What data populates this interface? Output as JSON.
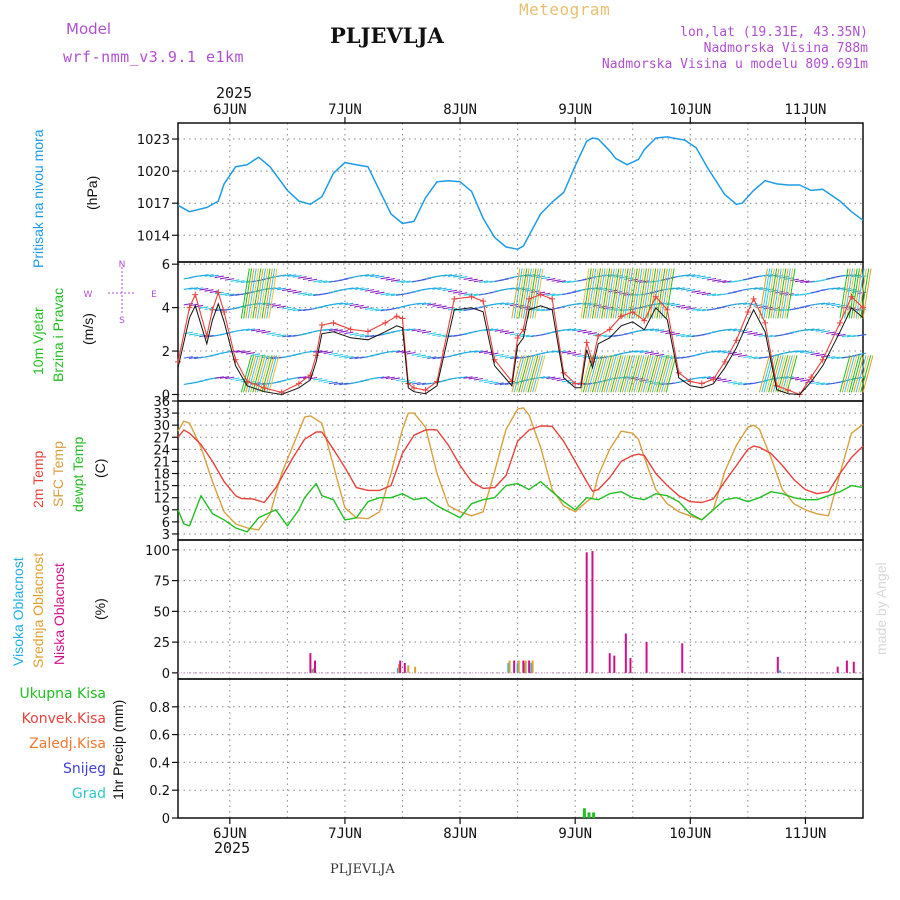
{
  "header": {
    "model_label": "Model",
    "model_name": "wrf-nmm_v3.9.1 e1km",
    "station": "PLJEVLJA",
    "product": "Meteogram",
    "coords": "lon,lat (19.31E, 43.35N)",
    "elevation": "Nadmorska Visina 788m",
    "model_elevation": "Nadmorska Visina u modelu 809.691m",
    "year": "2025",
    "footer_station": "PLJEVLJA",
    "credit": "made by Angel"
  },
  "colors": {
    "pressure": "#1e9be8",
    "temp2m": "#e8423c",
    "sfc_temp": "#d8a040",
    "dewpoint": "#22c022",
    "high_cloud": "#1eb0e8",
    "mid_cloud": "#e0a030",
    "low_cloud": "#d0108a",
    "total_precip": "#22c022",
    "conv_precip": "#e8423c",
    "frozen_precip": "#f07830",
    "snow": "#4040d8",
    "graupel": "#30c8c8",
    "purple_text": "#b050d0",
    "meteogram_text": "#e8c070"
  },
  "chart_data": [
    {
      "type": "line",
      "panel": "pressure",
      "title": "",
      "ylabel": "(hPa)",
      "side_label": "Pritisak na nivou mora",
      "xlabels": [
        "6JUN",
        "7JUN",
        "8JUN",
        "9JUN",
        "10JUN",
        "11JUN"
      ],
      "x_range_days": [
        5.55,
        11.5
      ],
      "ylim": [
        1011.5,
        1024.5
      ],
      "yticks": [
        1014,
        1017,
        1020,
        1023
      ],
      "series": [
        {
          "x": [
            5.55,
            5.65,
            5.8,
            5.9,
            5.95,
            6.05,
            6.15,
            6.25,
            6.35,
            6.5,
            6.6,
            6.7,
            6.8,
            6.9,
            7.0,
            7.1,
            7.2,
            7.3,
            7.4,
            7.5,
            7.6,
            7.7,
            7.8,
            7.9,
            8.0,
            8.1,
            8.2,
            8.3,
            8.4,
            8.5,
            8.55,
            8.6,
            8.7,
            8.8,
            8.9,
            9.0,
            9.1,
            9.15,
            9.2,
            9.3,
            9.35,
            9.45,
            9.55,
            9.6,
            9.7,
            9.8,
            9.85,
            9.95,
            10.05,
            10.15,
            10.3,
            10.4,
            10.45,
            10.55,
            10.65,
            10.75,
            10.85,
            10.95,
            11.05,
            11.15,
            11.3,
            11.4,
            11.5
          ],
          "values": [
            1016.8,
            1016.2,
            1016.6,
            1017.2,
            1018.8,
            1020.4,
            1020.6,
            1021.3,
            1020.4,
            1018.2,
            1017.2,
            1016.9,
            1017.6,
            1019.8,
            1020.8,
            1020.6,
            1020.4,
            1018.2,
            1016.0,
            1015.1,
            1015.3,
            1017.5,
            1019.0,
            1019.1,
            1019.0,
            1018.1,
            1015.6,
            1013.8,
            1012.9,
            1012.7,
            1013.0,
            1014.0,
            1016.0,
            1017.1,
            1018.0,
            1020.5,
            1022.8,
            1023.1,
            1023.0,
            1021.9,
            1021.2,
            1020.6,
            1021.1,
            1022.0,
            1023.1,
            1023.2,
            1023.1,
            1022.9,
            1022.2,
            1020.3,
            1017.8,
            1016.9,
            1017.0,
            1018.2,
            1019.1,
            1018.8,
            1018.7,
            1018.7,
            1018.2,
            1018.3,
            1017.2,
            1016.2,
            1015.4
          ]
        }
      ]
    },
    {
      "type": "line",
      "panel": "wind",
      "title": "",
      "ylabel": "(m/s)",
      "side_label_1": "10m Vjetar",
      "side_label_2": "Brzina i Pravac",
      "compass": [
        "N",
        "E",
        "W",
        "S"
      ],
      "ylim": [
        -0.3,
        6.1
      ],
      "yticks": [
        0,
        2,
        4,
        6
      ],
      "series": [
        {
          "name": "",
          "x": [
            5.55,
            5.65,
            5.7,
            5.8,
            5.85,
            5.9,
            5.95,
            6.05,
            6.15,
            6.3,
            6.45,
            6.6,
            6.7,
            6.75,
            6.8,
            6.9,
            7.05,
            7.2,
            7.35,
            7.45,
            7.5,
            7.55,
            7.6,
            7.7,
            7.8,
            7.95,
            8.1,
            8.2,
            8.3,
            8.45,
            8.5,
            8.55,
            8.6,
            8.7,
            8.8,
            8.9,
            9.0,
            9.05,
            9.1,
            9.15,
            9.2,
            9.3,
            9.4,
            9.5,
            9.6,
            9.7,
            9.8,
            9.9,
            10.0,
            10.1,
            10.2,
            10.3,
            10.4,
            10.5,
            10.55,
            10.65,
            10.75,
            10.85,
            10.95,
            11.05,
            11.15,
            11.3,
            11.4,
            11.5
          ],
          "values": [
            1.5,
            4.0,
            4.6,
            2.7,
            3.9,
            4.7,
            3.8,
            1.6,
            0.6,
            0.3,
            0.1,
            0.5,
            0.9,
            1.8,
            3.2,
            3.3,
            3.0,
            2.9,
            3.3,
            3.6,
            3.5,
            0.5,
            0.3,
            0.2,
            0.6,
            4.4,
            4.5,
            4.3,
            1.6,
            0.6,
            2.6,
            3.0,
            4.4,
            4.6,
            4.4,
            1.0,
            0.5,
            0.5,
            2.4,
            1.5,
            2.7,
            3.0,
            3.6,
            3.8,
            3.4,
            4.5,
            3.9,
            1.0,
            0.6,
            0.5,
            0.7,
            1.5,
            2.5,
            3.8,
            4.4,
            3.3,
            0.4,
            0.2,
            0.0,
            0.8,
            1.6,
            3.3,
            4.5,
            4.0
          ]
        }
      ]
    },
    {
      "type": "line",
      "panel": "temperature",
      "title": "",
      "ylabel": "(C)",
      "side_label_1": "2m Temp",
      "side_label_2": "SFC Temp",
      "side_label_3": "dewpt Temp",
      "ylim": [
        1.5,
        36
      ],
      "yticks": [
        3,
        6,
        9,
        12,
        15,
        18,
        21,
        24,
        27,
        30,
        33,
        36
      ],
      "series": [
        {
          "name": "2m Temp",
          "x": [
            5.55,
            5.6,
            5.65,
            5.75,
            5.85,
            5.95,
            6.05,
            6.1,
            6.2,
            6.3,
            6.4,
            6.55,
            6.65,
            6.75,
            6.8,
            6.9,
            7.0,
            7.1,
            7.2,
            7.3,
            7.4,
            7.5,
            7.6,
            7.7,
            7.75,
            7.8,
            7.9,
            8.0,
            8.1,
            8.2,
            8.3,
            8.4,
            8.5,
            8.6,
            8.7,
            8.75,
            8.8,
            8.9,
            9.0,
            9.1,
            9.15,
            9.2,
            9.3,
            9.4,
            9.5,
            9.55,
            9.6,
            9.7,
            9.8,
            9.9,
            10.0,
            10.1,
            10.2,
            10.3,
            10.4,
            10.5,
            10.55,
            10.6,
            10.7,
            10.8,
            10.9,
            11.0,
            11.1,
            11.2,
            11.3,
            11.4,
            11.5
          ],
          "values": [
            27.0,
            28.8,
            28.0,
            25.2,
            21.0,
            16.0,
            12.5,
            11.8,
            11.7,
            10.8,
            14.5,
            22.0,
            26.5,
            28.3,
            28.3,
            24.0,
            19.5,
            14.5,
            13.8,
            13.8,
            15.0,
            23.0,
            27.5,
            28.8,
            28.9,
            28.8,
            25.0,
            20.0,
            16.0,
            14.3,
            14.5,
            17.5,
            26.0,
            28.8,
            29.8,
            29.8,
            29.7,
            26.0,
            21.0,
            16.0,
            13.6,
            14.0,
            17.0,
            21.0,
            22.5,
            22.8,
            22.5,
            18.0,
            15.0,
            12.5,
            11.0,
            10.8,
            11.7,
            16.0,
            20.0,
            24.0,
            24.8,
            24.5,
            23.0,
            20.0,
            16.5,
            14.0,
            13.0,
            13.5,
            18.0,
            22.0,
            24.8
          ]
        },
        {
          "name": "SFC Temp",
          "x": [
            5.55,
            5.6,
            5.65,
            5.75,
            5.85,
            5.95,
            6.05,
            6.15,
            6.25,
            6.35,
            6.45,
            6.6,
            6.65,
            6.7,
            6.8,
            6.9,
            7.0,
            7.1,
            7.2,
            7.3,
            7.4,
            7.5,
            7.55,
            7.6,
            7.7,
            7.8,
            7.9,
            8.0,
            8.1,
            8.2,
            8.3,
            8.4,
            8.5,
            8.55,
            8.6,
            8.7,
            8.8,
            8.9,
            9.0,
            9.1,
            9.15,
            9.2,
            9.3,
            9.4,
            9.5,
            9.55,
            9.6,
            9.7,
            9.8,
            9.9,
            10.0,
            10.1,
            10.2,
            10.3,
            10.4,
            10.5,
            10.55,
            10.6,
            10.7,
            10.8,
            10.9,
            11.0,
            11.1,
            11.2,
            11.3,
            11.4,
            11.5
          ],
          "values": [
            28.5,
            31.0,
            30.5,
            24.5,
            16.0,
            8.5,
            5.5,
            4.5,
            4.0,
            8.0,
            18.0,
            28.5,
            32.0,
            32.3,
            30.5,
            20.0,
            9.5,
            7.0,
            6.8,
            8.5,
            18.0,
            29.0,
            33.0,
            33.0,
            29.5,
            18.0,
            10.0,
            8.5,
            7.5,
            8.5,
            18.5,
            29.0,
            34.0,
            34.3,
            32.5,
            24.5,
            14.0,
            10.0,
            8.5,
            11.0,
            12.0,
            17.5,
            24.0,
            28.5,
            28.0,
            26.5,
            22.0,
            14.0,
            10.5,
            8.5,
            7.5,
            6.5,
            9.0,
            18.5,
            25.0,
            29.5,
            30.0,
            29.0,
            22.0,
            14.0,
            10.5,
            9.0,
            8.0,
            7.5,
            18.0,
            28.0,
            30.2
          ]
        },
        {
          "name": "dewpt Temp",
          "x": [
            5.55,
            5.6,
            5.65,
            5.75,
            5.85,
            5.95,
            6.05,
            6.15,
            6.25,
            6.4,
            6.5,
            6.6,
            6.65,
            6.75,
            6.8,
            6.9,
            7.0,
            7.1,
            7.2,
            7.3,
            7.4,
            7.5,
            7.6,
            7.7,
            7.8,
            7.9,
            8.0,
            8.1,
            8.2,
            8.3,
            8.4,
            8.5,
            8.6,
            8.7,
            8.8,
            8.9,
            9.0,
            9.1,
            9.2,
            9.3,
            9.4,
            9.5,
            9.6,
            9.7,
            9.8,
            9.9,
            10.0,
            10.1,
            10.2,
            10.3,
            10.4,
            10.5,
            10.6,
            10.7,
            10.8,
            10.9,
            11.0,
            11.1,
            11.2,
            11.3,
            11.4,
            11.5
          ],
          "values": [
            9.0,
            5.5,
            5.0,
            12.5,
            8.0,
            6.5,
            4.5,
            3.5,
            7.0,
            9.0,
            5.0,
            9.0,
            12.0,
            15.5,
            12.5,
            11.5,
            6.5,
            7.0,
            11.0,
            12.0,
            12.0,
            13.0,
            11.5,
            12.0,
            10.0,
            8.5,
            7.0,
            10.5,
            11.5,
            12.0,
            15.0,
            15.5,
            14.0,
            16.0,
            13.5,
            11.0,
            9.0,
            12.0,
            11.5,
            13.0,
            13.5,
            12.0,
            11.5,
            13.0,
            12.5,
            11.0,
            8.0,
            6.5,
            9.0,
            11.5,
            12.0,
            11.0,
            12.0,
            13.5,
            13.0,
            12.0,
            11.5,
            11.5,
            12.5,
            13.5,
            15.0,
            14.5
          ]
        }
      ]
    },
    {
      "type": "bar",
      "panel": "cloud",
      "title": "",
      "ylabel": "(%)",
      "side_label_1": "Visoka Oblacnost",
      "side_label_2": "Srednja Oblacnost",
      "side_label_3": "Niska Oblacnost",
      "ylim": [
        -5,
        108
      ],
      "yticks": [
        0,
        25,
        50,
        75,
        100
      ],
      "series": [
        {
          "name": "Visoka Oblacnost",
          "x": [
            6.72,
            7.46,
            8.42,
            8.5,
            8.56,
            8.62,
            10.78
          ],
          "values": [
            3,
            4,
            8,
            8,
            8,
            8,
            2
          ]
        },
        {
          "name": "Srednja Oblacnost",
          "x": [
            6.73,
            7.47,
            7.55,
            7.61,
            8.43,
            8.51,
            8.57,
            8.63
          ],
          "values": [
            4,
            7,
            6,
            5,
            10,
            10,
            10,
            10
          ]
        },
        {
          "name": "Niska Oblacnost",
          "x": [
            6.7,
            6.74,
            7.48,
            7.52,
            8.47,
            8.55,
            8.6,
            9.1,
            9.15,
            9.3,
            9.34,
            9.44,
            9.48,
            9.62,
            9.93,
            10.76,
            11.28,
            11.36,
            11.42
          ],
          "values": [
            16,
            10,
            10,
            8,
            10,
            10,
            10,
            98,
            99,
            16,
            14,
            32,
            12,
            25,
            24,
            13,
            5,
            10,
            9
          ]
        }
      ]
    },
    {
      "type": "bar",
      "panel": "precipitation",
      "title": "",
      "ylabel": "1hr Precip (mm)",
      "ylim": [
        0,
        1.0
      ],
      "yticks": [
        0,
        0.2,
        0.4,
        0.6,
        0.8
      ],
      "legend": [
        "Ukupna Kisa",
        "Konvek.Kisa",
        "Zaledj.Kisa",
        "Snijeg",
        "Grad"
      ],
      "series": [
        {
          "name": "Ukupna Kisa",
          "x": [
            9.08,
            9.12,
            9.16
          ],
          "values": [
            0.07,
            0.04,
            0.04
          ]
        }
      ]
    }
  ]
}
